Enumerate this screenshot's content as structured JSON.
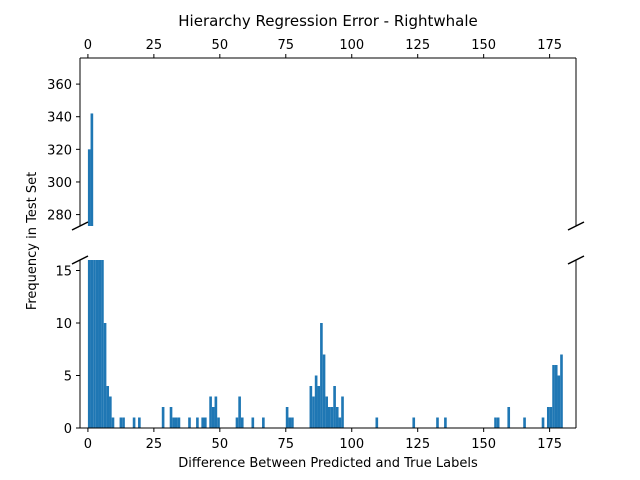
{
  "chart_data": {
    "type": "bar",
    "title": "Hierarchy Regression Error - Rightwhale",
    "xlabel": "Difference Between Predicted and True Labels",
    "ylabel": "Frequency in Test Set",
    "color": "#1f77b4",
    "broken_y_axis": true,
    "xlim": [
      -3,
      185
    ],
    "x_ticks": [
      0,
      25,
      50,
      75,
      100,
      125,
      150,
      175
    ],
    "top_x_ticks": [
      0,
      25,
      50,
      75,
      100,
      125,
      150,
      175
    ],
    "upper_panel": {
      "ylim": [
        273,
        376
      ],
      "y_ticks": [
        280,
        300,
        320,
        340,
        360
      ]
    },
    "lower_panel": {
      "ylim": [
        0,
        16
      ],
      "y_ticks": [
        0,
        5,
        10,
        15
      ]
    },
    "bin_width": 1,
    "bins": [
      {
        "x": 0,
        "y": 320
      },
      {
        "x": 1,
        "y": 342
      },
      {
        "x": 2,
        "y": 16
      },
      {
        "x": 3,
        "y": 16
      },
      {
        "x": 4,
        "y": 16
      },
      {
        "x": 5,
        "y": 16
      },
      {
        "x": 6,
        "y": 10
      },
      {
        "x": 7,
        "y": 4
      },
      {
        "x": 8,
        "y": 3
      },
      {
        "x": 9,
        "y": 1
      },
      {
        "x": 12,
        "y": 1
      },
      {
        "x": 13,
        "y": 1
      },
      {
        "x": 17,
        "y": 1
      },
      {
        "x": 19,
        "y": 1
      },
      {
        "x": 28,
        "y": 2
      },
      {
        "x": 31,
        "y": 2
      },
      {
        "x": 32,
        "y": 1
      },
      {
        "x": 33,
        "y": 1
      },
      {
        "x": 34,
        "y": 1
      },
      {
        "x": 38,
        "y": 1
      },
      {
        "x": 41,
        "y": 1
      },
      {
        "x": 43,
        "y": 1
      },
      {
        "x": 44,
        "y": 1
      },
      {
        "x": 46,
        "y": 3
      },
      {
        "x": 47,
        "y": 2
      },
      {
        "x": 48,
        "y": 3
      },
      {
        "x": 49,
        "y": 1
      },
      {
        "x": 56,
        "y": 1
      },
      {
        "x": 57,
        "y": 3
      },
      {
        "x": 58,
        "y": 1
      },
      {
        "x": 62,
        "y": 1
      },
      {
        "x": 66,
        "y": 1
      },
      {
        "x": 75,
        "y": 2
      },
      {
        "x": 76,
        "y": 1
      },
      {
        "x": 77,
        "y": 1
      },
      {
        "x": 84,
        "y": 4
      },
      {
        "x": 85,
        "y": 3
      },
      {
        "x": 86,
        "y": 5
      },
      {
        "x": 87,
        "y": 4
      },
      {
        "x": 88,
        "y": 10
      },
      {
        "x": 89,
        "y": 7
      },
      {
        "x": 90,
        "y": 3
      },
      {
        "x": 91,
        "y": 2
      },
      {
        "x": 92,
        "y": 2
      },
      {
        "x": 93,
        "y": 4
      },
      {
        "x": 94,
        "y": 2
      },
      {
        "x": 95,
        "y": 1
      },
      {
        "x": 96,
        "y": 3
      },
      {
        "x": 109,
        "y": 1
      },
      {
        "x": 123,
        "y": 1
      },
      {
        "x": 132,
        "y": 1
      },
      {
        "x": 135,
        "y": 1
      },
      {
        "x": 154,
        "y": 1
      },
      {
        "x": 155,
        "y": 1
      },
      {
        "x": 159,
        "y": 2
      },
      {
        "x": 165,
        "y": 1
      },
      {
        "x": 172,
        "y": 1
      },
      {
        "x": 174,
        "y": 2
      },
      {
        "x": 175,
        "y": 2
      },
      {
        "x": 176,
        "y": 6
      },
      {
        "x": 177,
        "y": 6
      },
      {
        "x": 178,
        "y": 5
      },
      {
        "x": 179,
        "y": 7
      }
    ]
  }
}
